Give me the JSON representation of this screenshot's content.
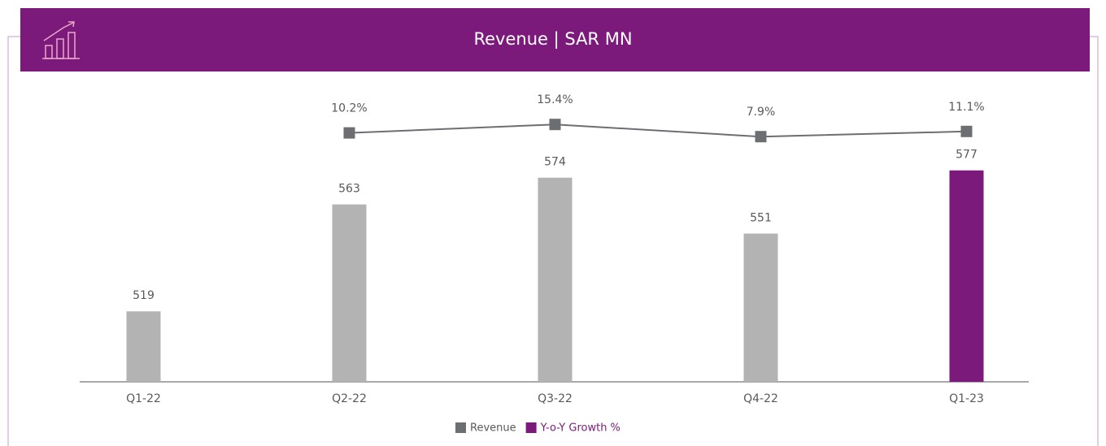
{
  "chart_data": {
    "type": "bar_line",
    "title": "Revenue | SAR MN",
    "categories": [
      "Q1-22",
      "Q2-22",
      "Q3-22",
      "Q4-22",
      "Q1-23"
    ],
    "series": [
      {
        "name": "Revenue",
        "type": "bar",
        "color": "#6d6e71",
        "bar_colors": [
          "#b3b3b3",
          "#b3b3b3",
          "#b3b3b3",
          "#b3b3b3",
          "#7b1a7a"
        ],
        "values": [
          519,
          563,
          574,
          551,
          577
        ]
      },
      {
        "name": "Y-o-Y Growth %",
        "type": "line",
        "axis": "y2",
        "color": "#7b1a7a",
        "line_color": "#6d6e71",
        "values": [
          null,
          10.2,
          15.4,
          7.9,
          11.1
        ],
        "value_labels": [
          null,
          "10.2%",
          "15.4%",
          "7.9%",
          "11.1%"
        ]
      }
    ],
    "ylim": [
      490,
      607
    ],
    "y2lim": [
      -143,
      32
    ],
    "legend": "bottom"
  }
}
